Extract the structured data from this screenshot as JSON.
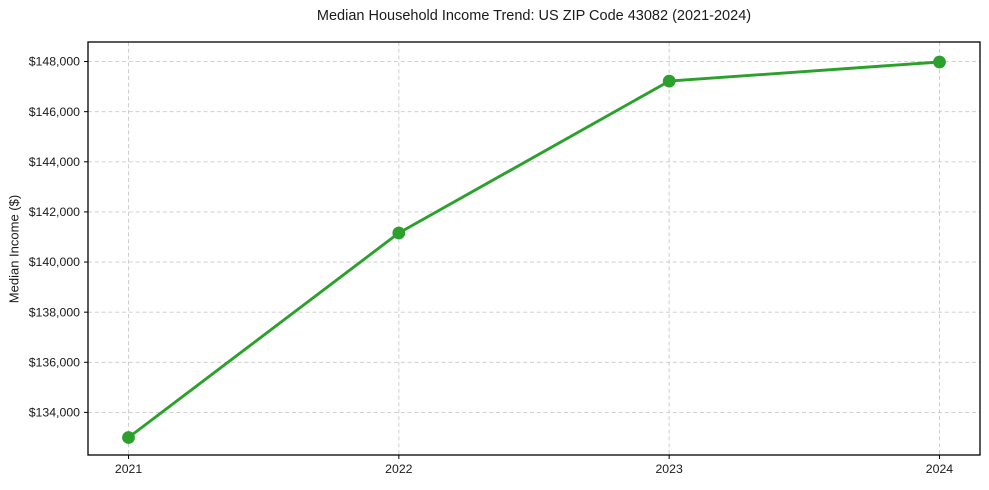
{
  "chart_data": {
    "type": "line",
    "title": "Median Household Income Trend: US ZIP Code 43082 (2021-2024)",
    "xlabel": "",
    "ylabel": "Median Income ($)",
    "x": [
      2021,
      2022,
      2023,
      2024
    ],
    "series": [
      {
        "name": "Median Household Income",
        "values": [
          133000,
          141160,
          147220,
          147980
        ],
        "color": "#2ca02c",
        "marker": "o"
      }
    ],
    "xtick_labels": [
      "2021",
      "2022",
      "2023",
      "2024"
    ],
    "ytick_values": [
      134000,
      136000,
      138000,
      140000,
      142000,
      144000,
      146000,
      148000
    ],
    "ytick_labels": [
      "$134,000",
      "$136,000",
      "$138,000",
      "$140,000",
      "$142,000",
      "$144,000",
      "$146,000",
      "$148,000"
    ],
    "xlim": [
      2020.85,
      2024.15
    ],
    "ylim": [
      132300,
      148780
    ],
    "grid": true,
    "grid_color": "#c9c9c9",
    "grid_style": "dashed",
    "spine_color": "#000000",
    "background": "#ffffff",
    "legend": "none"
  }
}
